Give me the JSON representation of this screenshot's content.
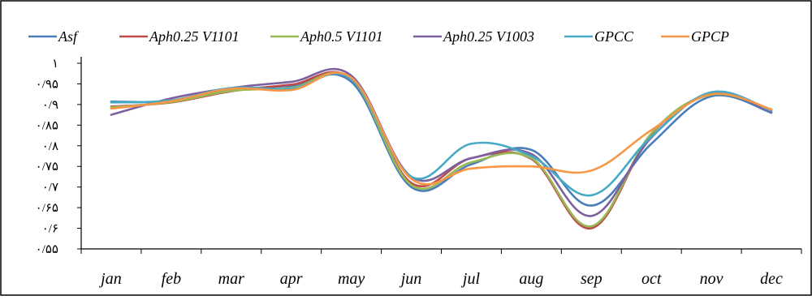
{
  "chart_data": {
    "type": "line",
    "title": "",
    "xlabel": "",
    "ylabel": "",
    "ylim": [
      0.55,
      1.0
    ],
    "grid": false,
    "legend_placement": "top",
    "categories": [
      "jan",
      "feb",
      "mar",
      "apr",
      "may",
      "jun",
      "jul",
      "aug",
      "sep",
      "oct",
      "nov",
      "dec"
    ],
    "y_ticks": [
      {
        "value": 1.0,
        "label": "۱"
      },
      {
        "value": 0.95,
        "label": "۰/۹۵"
      },
      {
        "value": 0.9,
        "label": "۰/۹"
      },
      {
        "value": 0.85,
        "label": "۰/۸۵"
      },
      {
        "value": 0.8,
        "label": "۰/۸"
      },
      {
        "value": 0.75,
        "label": "۰/۷۵"
      },
      {
        "value": 0.7,
        "label": "۰/۷"
      },
      {
        "value": 0.65,
        "label": "۰/۶۵"
      },
      {
        "value": 0.6,
        "label": "۰/۶"
      },
      {
        "value": 0.55,
        "label": "۰/۵۵"
      }
    ],
    "series": [
      {
        "name": "Asf",
        "color": "#4A7EBB",
        "values": [
          0.907,
          0.908,
          0.935,
          0.945,
          0.955,
          0.7,
          0.755,
          0.79,
          0.655,
          0.805,
          0.92,
          0.88
        ]
      },
      {
        "name": "Aph0.25 V1101",
        "color": "#BE4B48",
        "values": [
          0.895,
          0.905,
          0.932,
          0.948,
          0.962,
          0.71,
          0.77,
          0.768,
          0.6,
          0.828,
          0.925,
          0.888
        ]
      },
      {
        "name": "Aph0.5 V1101",
        "color": "#98B954",
        "values": [
          0.893,
          0.906,
          0.933,
          0.94,
          0.962,
          0.705,
          0.76,
          0.77,
          0.605,
          0.83,
          0.924,
          0.888
        ]
      },
      {
        "name": "Aph0.25 V1003",
        "color": "#7D60A0",
        "values": [
          0.875,
          0.915,
          0.94,
          0.955,
          0.97,
          0.725,
          0.77,
          0.78,
          0.63,
          0.82,
          0.928,
          0.882
        ]
      },
      {
        "name": "GPCC",
        "color": "#46AAC5",
        "values": [
          0.905,
          0.91,
          0.94,
          0.938,
          0.962,
          0.725,
          0.805,
          0.775,
          0.68,
          0.822,
          0.93,
          0.885
        ]
      },
      {
        "name": "GPCP",
        "color": "#F79646",
        "values": [
          0.89,
          0.908,
          0.938,
          0.935,
          0.965,
          0.72,
          0.745,
          0.75,
          0.74,
          0.838,
          0.925,
          0.888
        ]
      }
    ]
  }
}
